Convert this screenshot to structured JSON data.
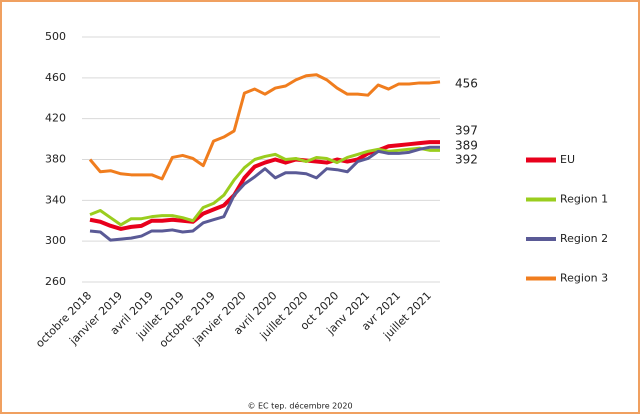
{
  "chart_data": {
    "type": "line",
    "footnote": "© EC tep. décembre 2020",
    "categories": [
      "octobre 2018",
      null,
      null,
      "janvier 2019",
      null,
      null,
      "avril 2019",
      null,
      null,
      "juillet 2019",
      null,
      null,
      "octobre 2019",
      null,
      null,
      "janvier 2020",
      null,
      null,
      "avril 2020",
      null,
      null,
      "juillet 2020",
      null,
      null,
      "oct 2020",
      null,
      null,
      "janv 2021",
      null,
      null,
      "avr 2021",
      null,
      null,
      "juillet 2021",
      null
    ],
    "ylim": [
      260,
      500
    ],
    "yticks": [
      260,
      300,
      340,
      380,
      420,
      460,
      500
    ],
    "grid": true,
    "legend": "right",
    "series": [
      {
        "name": "EU",
        "color": "#e8001c",
        "width": 4,
        "values": [
          321,
          319,
          315,
          312,
          314,
          315,
          320,
          320,
          321,
          320,
          319,
          327,
          331,
          335,
          345,
          362,
          373,
          377,
          380,
          377,
          380,
          379,
          378,
          377,
          380,
          378,
          380,
          386,
          389,
          393,
          394,
          395,
          396,
          397,
          397
        ]
      },
      {
        "name": "Region 1",
        "color": "#9acd1e",
        "width": 3,
        "values": [
          326,
          330,
          323,
          316,
          322,
          322,
          324,
          325,
          325,
          323,
          320,
          333,
          337,
          345,
          360,
          372,
          380,
          383,
          385,
          380,
          381,
          378,
          382,
          381,
          377,
          382,
          385,
          388,
          390,
          388,
          389,
          390,
          391,
          389,
          389
        ]
      },
      {
        "name": "Region 2",
        "color": "#5a5a96",
        "width": 3,
        "values": [
          310,
          309,
          301,
          302,
          303,
          305,
          310,
          310,
          311,
          309,
          310,
          318,
          321,
          324,
          345,
          356,
          363,
          371,
          362,
          367,
          367,
          366,
          362,
          371,
          370,
          368,
          378,
          381,
          388,
          386,
          386,
          387,
          390,
          392,
          392
        ]
      },
      {
        "name": "Region 3",
        "color": "#f07d1e",
        "width": 3,
        "values": [
          380,
          368,
          369,
          366,
          365,
          365,
          365,
          361,
          382,
          384,
          381,
          374,
          398,
          402,
          408,
          445,
          449,
          444,
          450,
          452,
          458,
          462,
          463,
          458,
          450,
          444,
          444,
          443,
          453,
          449,
          454,
          454,
          455,
          455,
          456
        ]
      }
    ],
    "end_labels": [
      456,
      397,
      389,
      392
    ]
  }
}
